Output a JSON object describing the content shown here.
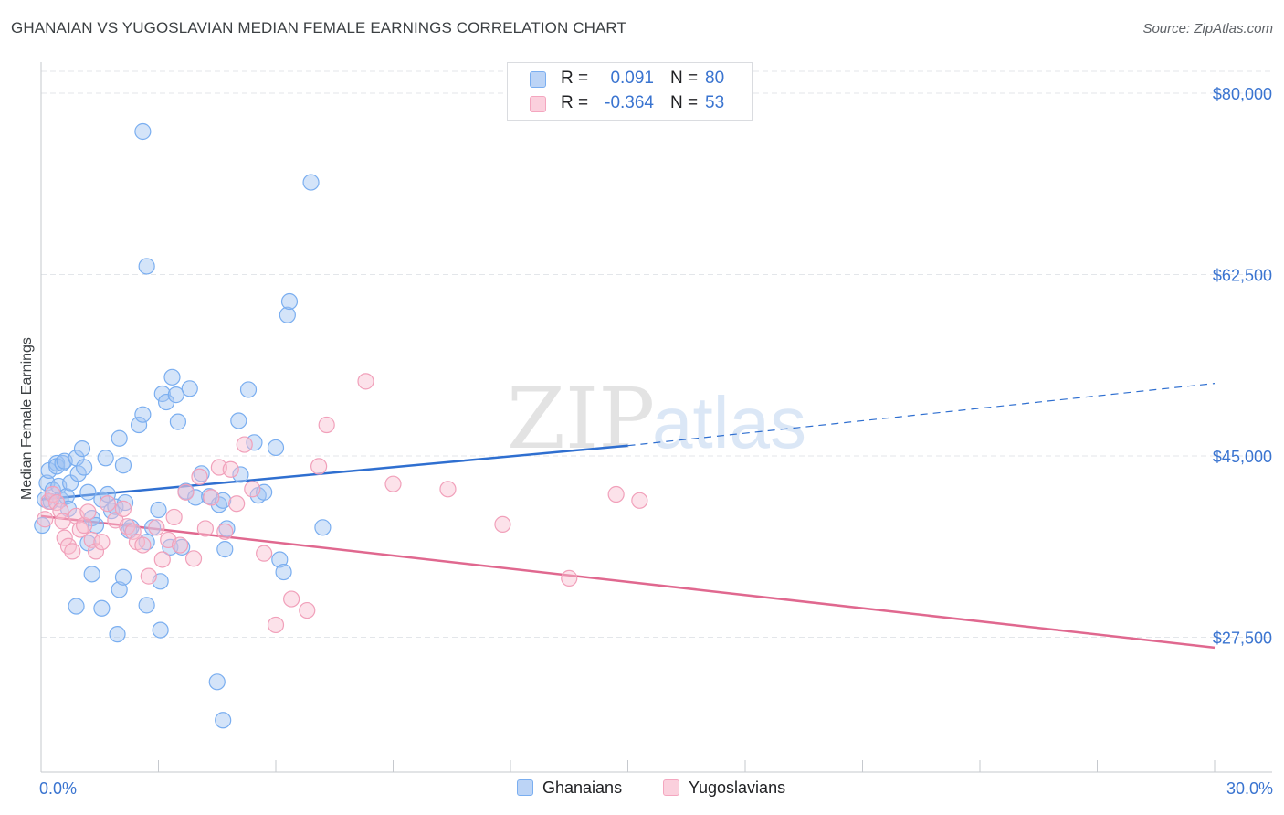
{
  "title": "GHANAIAN VS YUGOSLAVIAN MEDIAN FEMALE EARNINGS CORRELATION CHART",
  "source": "Source: ZipAtlas.com",
  "watermark": {
    "zip": "ZIP",
    "atlas": "atlas"
  },
  "legend": {
    "rows": [
      {
        "r_label": "R =",
        "r_value": "0.091",
        "n_label": "N =",
        "n_value": "80",
        "color": "#7aaef0"
      },
      {
        "r_label": "R =",
        "r_value": "-0.364",
        "n_label": "N =",
        "n_value": "53",
        "color": "#f4a6bf"
      }
    ]
  },
  "bottom_legend": {
    "ghanaians": "Ghanaians",
    "yugoslavians": "Yugoslavians"
  },
  "chart_data": {
    "type": "scatter",
    "title": "GHANAIAN VS YUGOSLAVIAN MEDIAN FEMALE EARNINGS CORRELATION CHART",
    "xlabel": "",
    "ylabel": "Median Female Earnings",
    "xlim": [
      0,
      30
    ],
    "ylim": [
      14500,
      83000
    ],
    "x_tick_labels": [
      "0.0%",
      "30.0%"
    ],
    "y_ticks": [
      {
        "value": 80000,
        "label": "$80,000"
      },
      {
        "value": 62500,
        "label": "$62,500"
      },
      {
        "value": 45000,
        "label": "$45,000"
      },
      {
        "value": 27500,
        "label": "$27,500"
      }
    ],
    "grid": true,
    "legend_position": "top-center",
    "colors": {
      "ghanaians": "#7aaef0",
      "yugoslavians": "#f4a6bf",
      "ghanaians_line": "#2f6fd0",
      "yugoslavians_line": "#e0688f"
    },
    "series": [
      {
        "name": "Ghanaians",
        "points": [
          [
            0.03,
            38300
          ],
          [
            0.1,
            40800
          ],
          [
            0.15,
            42400
          ],
          [
            0.2,
            43600
          ],
          [
            0.25,
            40600
          ],
          [
            0.3,
            41700
          ],
          [
            0.4,
            44300
          ],
          [
            0.4,
            44000
          ],
          [
            0.45,
            42100
          ],
          [
            0.5,
            40800
          ],
          [
            0.55,
            44300
          ],
          [
            0.6,
            44500
          ],
          [
            0.65,
            41100
          ],
          [
            0.7,
            39900
          ],
          [
            0.75,
            42400
          ],
          [
            0.9,
            44800
          ],
          [
            0.95,
            43300
          ],
          [
            1.05,
            45700
          ],
          [
            1.1,
            43900
          ],
          [
            1.2,
            41500
          ],
          [
            1.3,
            39000
          ],
          [
            1.4,
            38300
          ],
          [
            1.55,
            40800
          ],
          [
            1.65,
            44800
          ],
          [
            1.7,
            41300
          ],
          [
            1.8,
            39700
          ],
          [
            1.9,
            40100
          ],
          [
            2.0,
            46700
          ],
          [
            2.1,
            44100
          ],
          [
            2.15,
            40500
          ],
          [
            2.25,
            37800
          ],
          [
            2.3,
            38100
          ],
          [
            2.5,
            48000
          ],
          [
            2.6,
            49000
          ],
          [
            2.7,
            36700
          ],
          [
            2.85,
            38100
          ],
          [
            3.1,
            51000
          ],
          [
            3.0,
            39800
          ],
          [
            3.2,
            50200
          ],
          [
            3.3,
            36200
          ],
          [
            3.35,
            52600
          ],
          [
            3.45,
            50900
          ],
          [
            3.5,
            48300
          ],
          [
            3.6,
            36200
          ],
          [
            3.7,
            41600
          ],
          [
            3.8,
            51500
          ],
          [
            3.95,
            41000
          ],
          [
            4.1,
            43300
          ],
          [
            4.3,
            41100
          ],
          [
            4.55,
            40300
          ],
          [
            4.65,
            40700
          ],
          [
            4.75,
            38000
          ],
          [
            4.7,
            36000
          ],
          [
            5.05,
            48400
          ],
          [
            5.1,
            43200
          ],
          [
            5.3,
            51400
          ],
          [
            5.45,
            46300
          ],
          [
            5.55,
            41200
          ],
          [
            5.7,
            41500
          ],
          [
            6.0,
            45800
          ],
          [
            6.1,
            35000
          ],
          [
            6.2,
            33800
          ],
          [
            6.3,
            58600
          ],
          [
            6.35,
            59900
          ],
          [
            6.9,
            71400
          ],
          [
            7.2,
            38100
          ],
          [
            2.6,
            76300
          ],
          [
            2.7,
            63300
          ],
          [
            0.9,
            30500
          ],
          [
            1.2,
            36600
          ],
          [
            1.3,
            33600
          ],
          [
            1.55,
            30300
          ],
          [
            2.0,
            32100
          ],
          [
            2.1,
            33300
          ],
          [
            2.7,
            30600
          ],
          [
            3.05,
            28200
          ],
          [
            3.05,
            32900
          ],
          [
            1.95,
            27800
          ],
          [
            4.5,
            23200
          ],
          [
            4.65,
            19500
          ]
        ]
      },
      {
        "name": "Yugoslavians",
        "points": [
          [
            0.1,
            38900
          ],
          [
            0.2,
            40600
          ],
          [
            0.3,
            41300
          ],
          [
            0.4,
            40500
          ],
          [
            0.5,
            39700
          ],
          [
            0.55,
            38700
          ],
          [
            0.6,
            37100
          ],
          [
            0.7,
            36300
          ],
          [
            0.8,
            35800
          ],
          [
            0.9,
            39200
          ],
          [
            1.0,
            37900
          ],
          [
            1.1,
            38300
          ],
          [
            1.2,
            39600
          ],
          [
            1.3,
            36900
          ],
          [
            1.4,
            35800
          ],
          [
            1.55,
            36700
          ],
          [
            1.7,
            40400
          ],
          [
            1.9,
            38800
          ],
          [
            2.1,
            39900
          ],
          [
            2.2,
            38200
          ],
          [
            2.35,
            37700
          ],
          [
            2.45,
            36700
          ],
          [
            2.6,
            36400
          ],
          [
            2.75,
            33400
          ],
          [
            2.95,
            38100
          ],
          [
            3.1,
            35000
          ],
          [
            3.25,
            36900
          ],
          [
            3.4,
            39100
          ],
          [
            3.55,
            36400
          ],
          [
            3.7,
            41500
          ],
          [
            3.9,
            35100
          ],
          [
            4.05,
            43000
          ],
          [
            4.2,
            38000
          ],
          [
            4.35,
            41000
          ],
          [
            4.55,
            43900
          ],
          [
            4.7,
            37700
          ],
          [
            4.85,
            43700
          ],
          [
            5.0,
            40400
          ],
          [
            5.2,
            46100
          ],
          [
            5.4,
            41800
          ],
          [
            5.7,
            35600
          ],
          [
            6.0,
            28700
          ],
          [
            6.4,
            31200
          ],
          [
            6.8,
            30100
          ],
          [
            7.1,
            44000
          ],
          [
            7.3,
            48000
          ],
          [
            8.3,
            52200
          ],
          [
            9.0,
            42300
          ],
          [
            10.4,
            41800
          ],
          [
            11.8,
            38400
          ],
          [
            13.5,
            33200
          ],
          [
            14.7,
            41300
          ],
          [
            15.3,
            40700
          ]
        ]
      }
    ],
    "trendlines": [
      {
        "name": "Ghanaians",
        "x": [
          0,
          15
        ],
        "y": [
          40800,
          46000
        ],
        "dashed_extension_to": [
          30,
          52000
        ]
      },
      {
        "name": "Yugoslavians",
        "x": [
          0,
          30
        ],
        "y": [
          39200,
          26500
        ]
      }
    ]
  }
}
